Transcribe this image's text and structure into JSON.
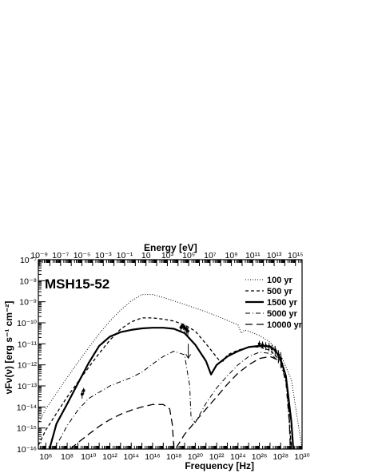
{
  "chart_data": {
    "type": "line",
    "title": "MSH15-52",
    "xlabel": "Frequency [Hz]",
    "x2label": "Energy [eV]",
    "ylabel": "νFν(ν) [erg s⁻¹ cm⁻²]",
    "xlim": [
      200000,
      1e+30
    ],
    "ylim": [
      1e-16,
      1e-07
    ],
    "x2lim": [
      8.27e-10,
      4140000000000000.0
    ],
    "xscale": "log",
    "yscale": "log",
    "grid": false,
    "legend_position": "top-right",
    "x_tick_labels": [
      "10⁶",
      "10⁸",
      "10¹⁰",
      "10¹²",
      "10¹⁴",
      "10¹⁶",
      "10¹⁸",
      "10²⁰",
      "10²²",
      "10²⁴",
      "10²⁶",
      "10²⁸",
      "10³⁰"
    ],
    "x2_tick_labels": [
      "10⁻⁹",
      "10⁻⁷",
      "10⁻⁵",
      "10⁻³",
      "10⁻¹",
      "10",
      "10³",
      "10⁵",
      "10⁷",
      "10⁹",
      "10¹¹",
      "10¹³",
      "10¹⁵"
    ],
    "y_tick_labels": [
      "10⁻¹⁶",
      "10⁻¹⁵",
      "10⁻¹⁴",
      "10⁻¹³",
      "10⁻¹²",
      "10⁻¹¹",
      "10⁻¹⁰",
      "10⁻⁹",
      "10⁻⁸",
      "10⁻⁷"
    ],
    "series": [
      {
        "name": "100 yr",
        "style": "dotted",
        "x": [
          200000.0,
          1000000.0,
          10000000.0,
          100000000.0,
          1000000000.0,
          10000000000.0,
          100000000000.0,
          1000000000000.0,
          10000000000000.0,
          100000000000000.0,
          1000000000000000.0,
          1e+16,
          1e+17,
          1e+18,
          1e+19,
          1e+20,
          1e+21,
          1e+22,
          1e+23,
          1e+24,
          2e+24,
          4e+24,
          1e+25,
          1e+26,
          1e+27,
          1e+28,
          1e+29,
          1e+30
        ],
        "y": [
          1.6e-15,
          8e-15,
          4.5e-14,
          2.5e-13,
          1.3e-12,
          6.5e-12,
          3e-11,
          1.2e-10,
          4e-10,
          1.1e-09,
          2.2e-09,
          2.2e-09,
          1.6e-09,
          1.1e-09,
          7.5e-10,
          5e-10,
          3.3e-10,
          2.1e-10,
          1.3e-10,
          8e-11,
          3.2e-11,
          4.5e-11,
          4e-11,
          2.5e-11,
          1.2e-11,
          3e-12,
          2e-13,
          1e-16
        ]
      },
      {
        "name": "500 yr",
        "style": "dashed",
        "x": [
          200000.0,
          1000000.0,
          10000000.0,
          100000000.0,
          1000000000.0,
          10000000000.0,
          100000000000.0,
          1000000000000.0,
          10000000000000.0,
          100000000000000.0,
          1000000000000000.0,
          1e+16,
          1e+17,
          1e+18,
          1e+19,
          1e+20,
          1e+21,
          2e+22,
          4e+22,
          1e+23,
          1e+24,
          1e+25,
          1e+26,
          1e+27,
          1e+28,
          4e+28,
          1e+29
        ],
        "y": [
          1.5e-16,
          8e-16,
          5e-15,
          3e-14,
          1.5e-13,
          7.5e-13,
          3.5e-12,
          1.5e-11,
          5e-11,
          1.1e-10,
          1.7e-10,
          1.7e-10,
          1.5e-10,
          1.2e-10,
          8e-11,
          4e-11,
          1e-11,
          1.5e-12,
          1.5e-12,
          3e-12,
          5e-12,
          7e-12,
          7e-12,
          5e-12,
          1.5e-12,
          1e-13,
          1e-16
        ]
      },
      {
        "name": "1500 yr",
        "style": "solid-thick",
        "x": [
          2200000.0,
          10000000.0,
          100000000.0,
          1000000000.0,
          10000000000.0,
          100000000000.0,
          1000000000000.0,
          10000000000000.0,
          100000000000000.0,
          1000000000000000.0,
          1e+16,
          1e+17,
          1e+18,
          1e+19,
          1e+20,
          1e+21,
          3e+21,
          1e+22,
          1e+23,
          1e+24,
          1e+25,
          1e+26,
          1e+27,
          3e+27,
          1e+28,
          3e+28,
          1e+29,
          1.5e+29
        ],
        "y": [
          1e-16,
          1.6e-15,
          1.4e-14,
          1.3e-13,
          1.2e-12,
          8e-12,
          2.2e-11,
          3.6e-11,
          4.6e-11,
          5.4e-11,
          5.8e-11,
          5.8e-11,
          5.2e-11,
          3.2e-11,
          9e-12,
          1.5e-12,
          3.5e-13,
          1e-12,
          2.5e-12,
          4.5e-12,
          7e-12,
          8e-12,
          7.5e-12,
          5e-12,
          1.8e-12,
          3e-13,
          2e-15,
          1e-16
        ]
      },
      {
        "name": "5000 yr",
        "style": "dash-dot",
        "x": [
          5000000.0,
          10000000.0,
          100000000.0,
          1000000000.0,
          10000000000.0,
          100000000000.0,
          1000000000000.0,
          10000000000000.0,
          100000000000000.0,
          1000000000000000.0,
          1e+16,
          1e+17,
          1e+18,
          1e+19,
          3e+19,
          4e+19,
          1e+20,
          1e+21,
          1e+22,
          1e+23,
          1e+24,
          1e+25,
          1e+26,
          1e+27,
          1e+28,
          3e+28,
          1e+29
        ],
        "y": [
          1e-16,
          1.5e-16,
          1.3e-15,
          7e-15,
          2.5e-14,
          5e-14,
          1e-13,
          1.6e-13,
          2.5e-13,
          4.5e-13,
          1.1e-12,
          2.5e-12,
          4.5e-12,
          3e-12,
          1e-13,
          3e-15,
          1.8e-15,
          1.5e-14,
          8e-14,
          3e-13,
          1e-12,
          2.5e-12,
          4e-12,
          3.5e-12,
          1.2e-12,
          1.5e-13,
          1e-16
        ]
      },
      {
        "name": "10000 yr",
        "style": "long-dash",
        "x": [
          200000000.0,
          1000000000.0,
          10000000000.0,
          100000000000.0,
          1000000000000.0,
          10000000000000.0,
          100000000000000.0,
          1000000000000000.0,
          1e+16,
          1e+17,
          4e+17,
          7e+17,
          1e+18,
          1.4e+18,
          1e+19,
          1e+20,
          1e+21,
          1e+22,
          1e+23,
          1e+24,
          1e+25,
          1e+26,
          1e+27,
          1e+28,
          3e+28,
          6e+28,
          8e+28
        ],
        "y": [
          1e-16,
          2e-16,
          5e-16,
          1.2e-15,
          2.5e-15,
          4.5e-15,
          7e-15,
          1e-14,
          1.3e-14,
          1.3e-14,
          8e-15,
          1.5e-15,
          1e-16,
          1e-16,
          5e-16,
          2e-15,
          8e-15,
          3e-14,
          1.2e-13,
          4e-13,
          1e-12,
          2e-12,
          2.5e-12,
          1.5e-12,
          3e-13,
          5e-15,
          1e-16
        ]
      }
    ],
    "observations": [
      {
        "x": 2500000000.0,
        "y": 4e-14,
        "ylo": 2.5e-14,
        "yhi": 6e-14
      },
      {
        "x": 3500000000.0,
        "y": 6e-14,
        "ylo": 4e-14,
        "yhi": 8e-14
      },
      {
        "x": 4.5e+18,
        "y": 6e-11,
        "ylo": 4e-11,
        "yhi": 8e-11
      },
      {
        "x": 6e+18,
        "y": 7e-11,
        "ylo": 5e-11,
        "yhi": 9e-11
      },
      {
        "x": 8e+18,
        "y": 6.5e-11,
        "ylo": 4.5e-11,
        "yhi": 9e-11
      },
      {
        "x": 1.1e+19,
        "y": 5.5e-11,
        "ylo": 3.5e-11,
        "yhi": 8e-11
      },
      {
        "x": 1.5e+19,
        "y": 5e-11,
        "ylo": 3e-11,
        "yhi": 7e-11
      },
      {
        "x": 2e+19,
        "y": 4e-11,
        "ylo": 2.5e-11,
        "yhi": 6e-11
      },
      {
        "x": 1e+26,
        "y": 1e-11,
        "ylo": 7e-12,
        "yhi": 1.4e-11
      },
      {
        "x": 2e+26,
        "y": 9e-12,
        "ylo": 6e-12,
        "yhi": 1.3e-11
      },
      {
        "x": 4e+26,
        "y": 8e-12,
        "ylo": 5e-12,
        "yhi": 1.2e-11
      },
      {
        "x": 8e+26,
        "y": 7.5e-12,
        "ylo": 4.5e-12,
        "yhi": 1.1e-11
      },
      {
        "x": 1.5e+27,
        "y": 6e-12,
        "ylo": 3.5e-12,
        "yhi": 9e-12
      },
      {
        "x": 3e+27,
        "y": 5e-12,
        "ylo": 2.5e-12,
        "yhi": 8e-12
      },
      {
        "x": 6e+27,
        "y": 3e-12,
        "ylo": 1.2e-12,
        "yhi": 5e-12
      },
      {
        "x": 1e+28,
        "y": 2e-12,
        "ylo": 7e-13,
        "yhi": 4e-12
      }
    ],
    "upper_limits": [
      {
        "x": 2.2e+19,
        "y": 1e-11
      }
    ]
  }
}
